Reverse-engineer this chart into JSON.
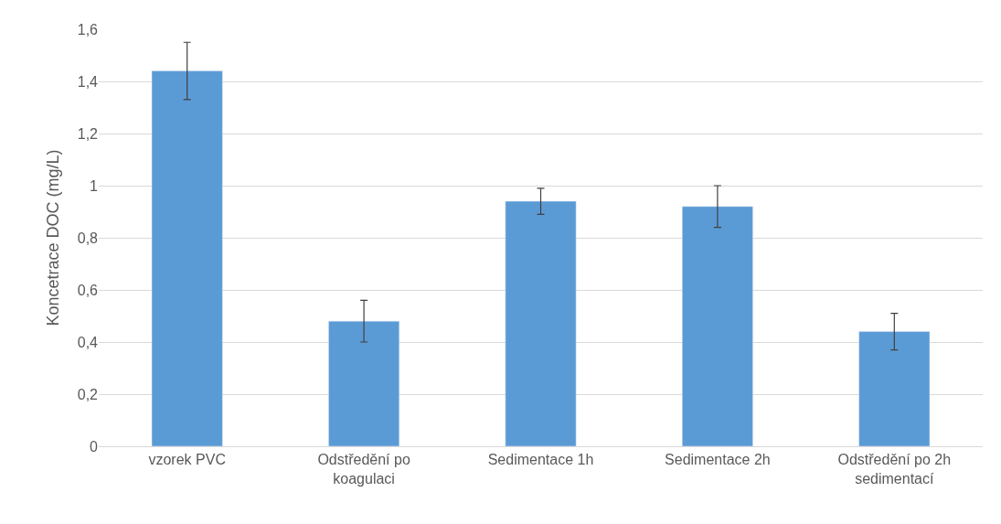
{
  "chart_data": {
    "type": "bar",
    "ylabel": "Koncetrace DOC (mg/L)",
    "categories": [
      "vzorek PVC",
      "Odstředění po\nkoagulaci",
      "Sedimentace 1h",
      "Sedimentace 2h",
      "Odstředění po 2h\nsedimentací"
    ],
    "values": [
      1.44,
      0.48,
      0.94,
      0.92,
      0.44
    ],
    "errors": [
      0.11,
      0.08,
      0.05,
      0.08,
      0.07
    ],
    "color": "#5b9bd5",
    "ylim": [
      0,
      1.6
    ],
    "yticks": [
      0,
      {
        "value": 0.2,
        "label": "0,2"
      },
      {
        "value": 0.4,
        "label": "0,4"
      },
      {
        "value": 0.6,
        "label": "0,6"
      },
      {
        "value": 0.8,
        "label": "0,8"
      },
      1,
      {
        "value": 1.2,
        "label": "1,2"
      },
      {
        "value": 1.4,
        "label": "1,4"
      },
      {
        "value": 1.6,
        "label": "1,6"
      }
    ],
    "grid": "y"
  }
}
